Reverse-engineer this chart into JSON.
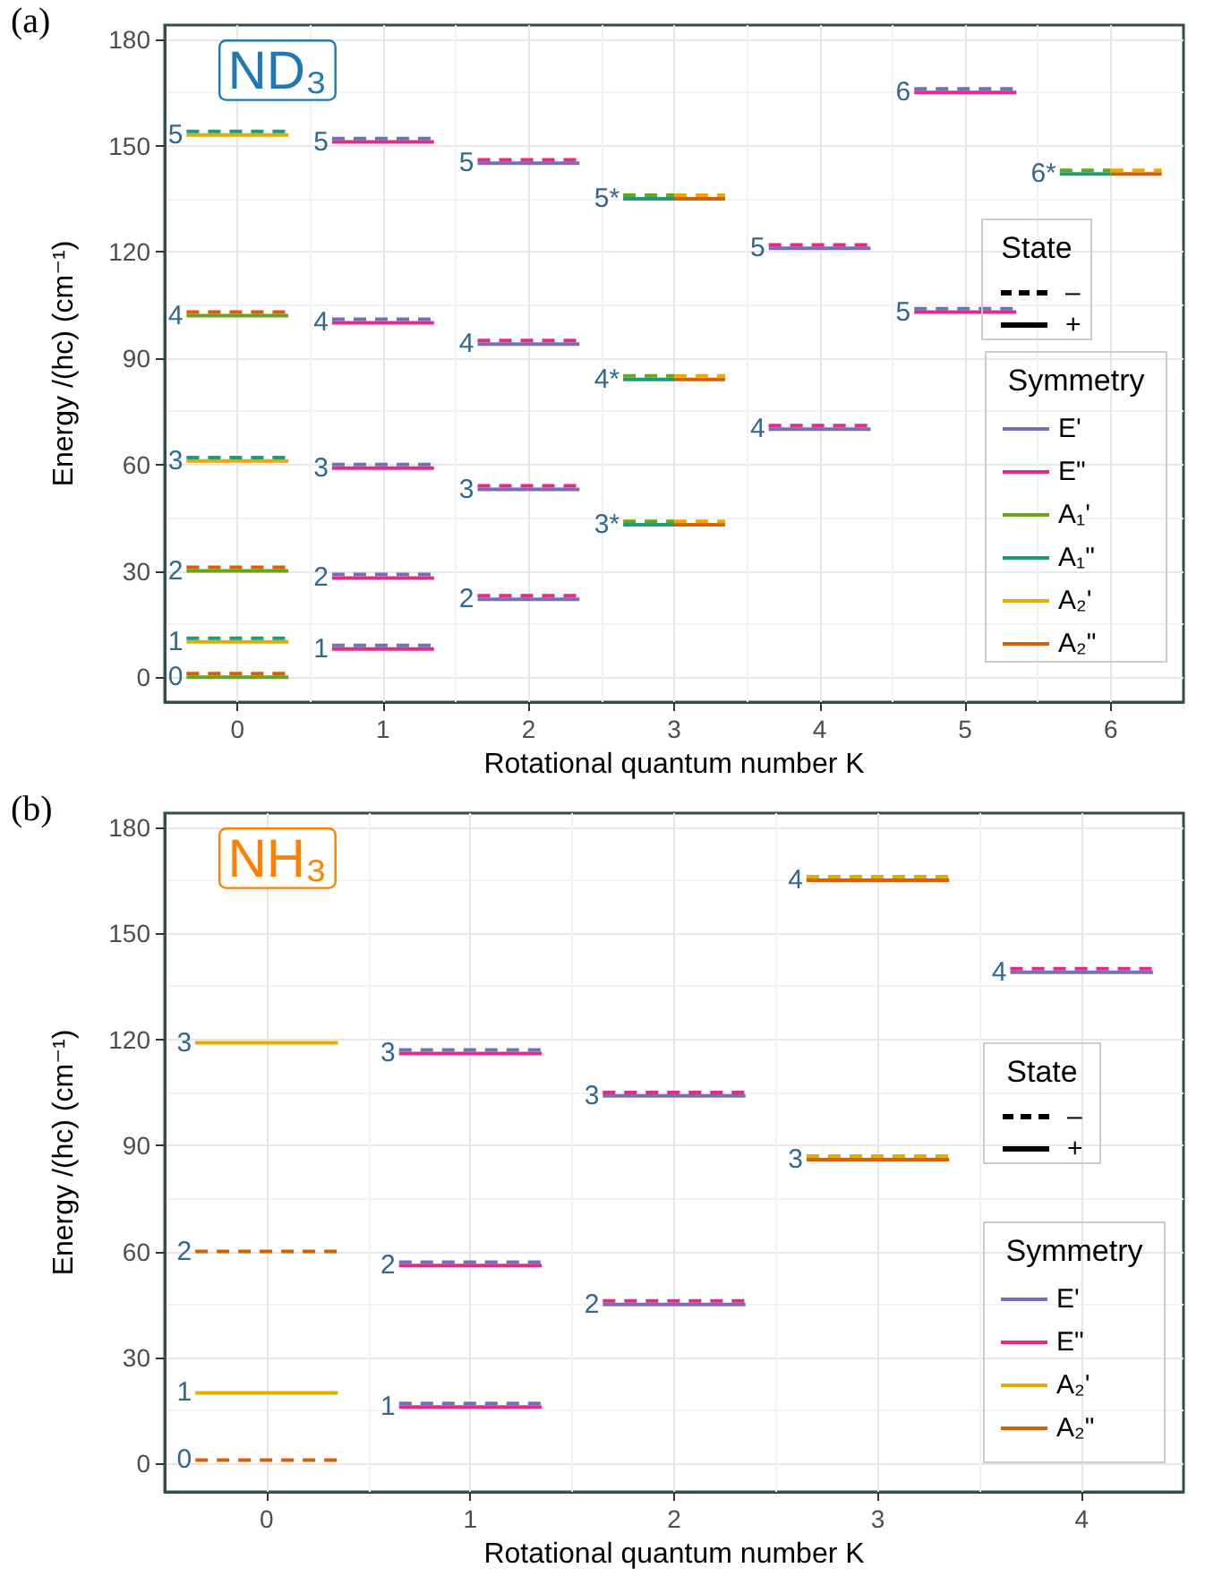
{
  "chart_data": [
    {
      "type": "line",
      "title": "ND₃",
      "xlabel": "Rotational quantum number K",
      "ylabel": "Energy /(hc) (cm⁻¹)",
      "legend_title": "Symmetry",
      "legend": "right",
      "grid": true,
      "xlim": [
        -0.5,
        6.5
      ],
      "xticks": [
        0,
        1,
        2,
        3,
        4,
        5,
        6
      ],
      "ylim": [
        -7,
        184
      ],
      "yticks": [
        0,
        30,
        60,
        90,
        120,
        150,
        180
      ],
      "series": [
        {
          "name": "E'",
          "color": "#7570b3",
          "line_style": "dashed",
          "x": [
            0.65,
            1.35
          ],
          "values": [
            9,
            9
          ]
        },
        {
          "color": "#7570b3",
          "line_style": "dashed",
          "x": [
            0.65,
            1.35
          ],
          "values": [
            29,
            29
          ]
        },
        {
          "color": "#7570b3",
          "line_style": "dashed",
          "x": [
            0.65,
            1.35
          ],
          "values": [
            60,
            60
          ]
        },
        {
          "color": "#7570b3",
          "line_style": "dashed",
          "x": [
            0.65,
            1.35
          ],
          "values": [
            101,
            101
          ]
        },
        {
          "color": "#7570b3",
          "line_style": "dashed",
          "x": [
            0.65,
            1.35
          ],
          "values": [
            152,
            152
          ]
        },
        {
          "color": "#7570b3",
          "line_style": "dashed",
          "x": [
            4.65,
            5.35
          ],
          "values": [
            166,
            166
          ]
        },
        {
          "color": "#7570b3",
          "line_style": "dashed",
          "x": [
            4.65,
            5.35
          ],
          "values": [
            104,
            104
          ]
        },
        {
          "color": "#7570b3",
          "line_style": "solid",
          "x": [
            1.65,
            2.35
          ],
          "values": [
            22,
            22
          ]
        },
        {
          "color": "#7570b3",
          "line_style": "solid",
          "x": [
            1.65,
            2.35
          ],
          "values": [
            53,
            53
          ]
        },
        {
          "color": "#7570b3",
          "line_style": "solid",
          "x": [
            1.65,
            2.35
          ],
          "values": [
            94,
            94
          ]
        },
        {
          "color": "#7570b3",
          "line_style": "solid",
          "x": [
            1.65,
            2.35
          ],
          "values": [
            145,
            145
          ]
        },
        {
          "color": "#7570b3",
          "line_style": "solid",
          "x": [
            3.65,
            4.35
          ],
          "values": [
            121,
            121
          ]
        },
        {
          "color": "#7570b3",
          "line_style": "solid",
          "x": [
            3.65,
            4.35
          ],
          "values": [
            70,
            70
          ]
        },
        {
          "name": "E\"",
          "color": "#e7298a",
          "line_style": "solid",
          "x": [
            0.65,
            1.35
          ],
          "values": [
            8,
            8
          ]
        },
        {
          "color": "#e7298a",
          "line_style": "solid",
          "x": [
            0.65,
            1.35
          ],
          "values": [
            28,
            28
          ]
        },
        {
          "color": "#e7298a",
          "line_style": "solid",
          "x": [
            0.65,
            1.35
          ],
          "values": [
            59,
            59
          ]
        },
        {
          "color": "#e7298a",
          "line_style": "solid",
          "x": [
            0.65,
            1.35
          ],
          "values": [
            100,
            100
          ]
        },
        {
          "color": "#e7298a",
          "line_style": "solid",
          "x": [
            0.65,
            1.35
          ],
          "values": [
            151,
            151
          ]
        },
        {
          "color": "#e7298a",
          "line_style": "solid",
          "x": [
            4.65,
            5.35
          ],
          "values": [
            165,
            165
          ]
        },
        {
          "color": "#e7298a",
          "line_style": "solid",
          "x": [
            4.65,
            5.35
          ],
          "values": [
            103,
            103
          ]
        },
        {
          "color": "#e7298a",
          "line_style": "dashed",
          "x": [
            1.65,
            2.35
          ],
          "values": [
            23,
            23
          ]
        },
        {
          "color": "#e7298a",
          "line_style": "dashed",
          "x": [
            1.65,
            2.35
          ],
          "values": [
            54,
            54
          ]
        },
        {
          "color": "#e7298a",
          "line_style": "dashed",
          "x": [
            1.65,
            2.35
          ],
          "values": [
            95,
            95
          ]
        },
        {
          "color": "#e7298a",
          "line_style": "dashed",
          "x": [
            1.65,
            2.35
          ],
          "values": [
            146,
            146
          ]
        },
        {
          "color": "#e7298a",
          "line_style": "dashed",
          "x": [
            3.65,
            4.35
          ],
          "values": [
            122,
            122
          ]
        },
        {
          "color": "#e7298a",
          "line_style": "dashed",
          "x": [
            3.65,
            4.35
          ],
          "values": [
            71,
            71
          ]
        },
        {
          "name": "A₁'",
          "color": "#66a61e",
          "line_style": "solid",
          "x": [
            -0.35,
            0.35
          ],
          "values": [
            0,
            0
          ]
        },
        {
          "color": "#66a61e",
          "line_style": "solid",
          "x": [
            -0.35,
            0.35
          ],
          "values": [
            30,
            30
          ]
        },
        {
          "color": "#66a61e",
          "line_style": "solid",
          "x": [
            -0.35,
            0.35
          ],
          "values": [
            102,
            102
          ]
        },
        {
          "color": "#66a61e",
          "line_style": "dashed",
          "x": [
            2.65,
            3
          ],
          "values": [
            136,
            136
          ]
        },
        {
          "color": "#66a61e",
          "line_style": "dashed",
          "x": [
            2.65,
            3
          ],
          "values": [
            85,
            85
          ]
        },
        {
          "color": "#66a61e",
          "line_style": "dashed",
          "x": [
            2.65,
            3
          ],
          "values": [
            44,
            44
          ]
        },
        {
          "color": "#66a61e",
          "line_style": "dashed",
          "x": [
            5.65,
            6
          ],
          "values": [
            143,
            143
          ]
        },
        {
          "name": "A₁\"",
          "color": "#1b9e77",
          "line_style": "dashed",
          "x": [
            -0.35,
            0.35
          ],
          "values": [
            11,
            11
          ]
        },
        {
          "color": "#1b9e77",
          "line_style": "dashed",
          "x": [
            -0.35,
            0.35
          ],
          "values": [
            62,
            62
          ]
        },
        {
          "color": "#1b9e77",
          "line_style": "dashed",
          "x": [
            -0.35,
            0.35
          ],
          "values": [
            154,
            154
          ]
        },
        {
          "color": "#1b9e77",
          "line_style": "solid",
          "x": [
            2.65,
            3
          ],
          "values": [
            135,
            135
          ]
        },
        {
          "color": "#1b9e77",
          "line_style": "solid",
          "x": [
            2.65,
            3
          ],
          "values": [
            84,
            84
          ]
        },
        {
          "color": "#1b9e77",
          "line_style": "solid",
          "x": [
            2.65,
            3
          ],
          "values": [
            43,
            43
          ]
        },
        {
          "color": "#1b9e77",
          "line_style": "solid",
          "x": [
            5.65,
            6
          ],
          "values": [
            142,
            142
          ]
        },
        {
          "name": "A₂'",
          "color": "#e6ab02",
          "line_style": "solid",
          "x": [
            -0.35,
            0.35
          ],
          "values": [
            10,
            10
          ]
        },
        {
          "color": "#e6ab02",
          "line_style": "solid",
          "x": [
            -0.35,
            0.35
          ],
          "values": [
            61,
            61
          ]
        },
        {
          "color": "#e6ab02",
          "line_style": "solid",
          "x": [
            -0.35,
            0.35
          ],
          "values": [
            153,
            153
          ]
        },
        {
          "color": "#e6ab02",
          "line_style": "dashed",
          "x": [
            3,
            3.35
          ],
          "values": [
            136,
            136
          ]
        },
        {
          "color": "#e6ab02",
          "line_style": "dashed",
          "x": [
            3,
            3.35
          ],
          "values": [
            85,
            85
          ]
        },
        {
          "color": "#e6ab02",
          "line_style": "dashed",
          "x": [
            3,
            3.35
          ],
          "values": [
            44,
            44
          ]
        },
        {
          "color": "#e6ab02",
          "line_style": "dashed",
          "x": [
            6,
            6.35
          ],
          "values": [
            143,
            143
          ]
        },
        {
          "name": "A₂\"",
          "color": "#d95f02",
          "line_style": "dashed",
          "x": [
            -0.35,
            0.35
          ],
          "values": [
            1,
            1
          ]
        },
        {
          "color": "#d95f02",
          "line_style": "dashed",
          "x": [
            -0.35,
            0.35
          ],
          "values": [
            31,
            31
          ]
        },
        {
          "color": "#d95f02",
          "line_style": "dashed",
          "x": [
            -0.35,
            0.35
          ],
          "values": [
            103,
            103
          ]
        },
        {
          "color": "#d95f02",
          "line_style": "solid",
          "x": [
            3,
            3.35
          ],
          "values": [
            135,
            135
          ]
        },
        {
          "color": "#d95f02",
          "line_style": "solid",
          "x": [
            3,
            3.35
          ],
          "values": [
            84,
            84
          ]
        },
        {
          "color": "#d95f02",
          "line_style": "solid",
          "x": [
            3,
            3.35
          ],
          "values": [
            43,
            43
          ]
        },
        {
          "color": "#d95f02",
          "line_style": "solid",
          "x": [
            6,
            6.35
          ],
          "values": [
            142,
            142
          ]
        }
      ],
      "annotations": [
        "(a)",
        "State",
        "–",
        "+",
        {
          "text": "0",
          "x": -0.35,
          "y": 0
        },
        {
          "text": "1",
          "x": -0.35,
          "y": 10
        },
        {
          "text": "2",
          "x": -0.35,
          "y": 30
        },
        {
          "text": "3",
          "x": -0.35,
          "y": 61
        },
        {
          "text": "4",
          "x": -0.35,
          "y": 102
        },
        {
          "text": "5",
          "x": -0.35,
          "y": 153
        },
        {
          "text": "1",
          "x": 0.65,
          "y": 8
        },
        {
          "text": "2",
          "x": 0.65,
          "y": 28
        },
        {
          "text": "3",
          "x": 0.65,
          "y": 59
        },
        {
          "text": "4",
          "x": 0.65,
          "y": 100
        },
        {
          "text": "5",
          "x": 0.65,
          "y": 151
        },
        {
          "text": "2",
          "x": 1.65,
          "y": 22
        },
        {
          "text": "3",
          "x": 1.65,
          "y": 53
        },
        {
          "text": "4",
          "x": 1.65,
          "y": 94
        },
        {
          "text": "5",
          "x": 1.65,
          "y": 145
        },
        {
          "text": "3*",
          "x": 2.65,
          "y": 43
        },
        {
          "text": "4*",
          "x": 2.65,
          "y": 84
        },
        {
          "text": "5*",
          "x": 2.65,
          "y": 135
        },
        {
          "text": "4",
          "x": 3.65,
          "y": 70
        },
        {
          "text": "5",
          "x": 3.65,
          "y": 121
        },
        {
          "text": "5",
          "x": 4.65,
          "y": 103
        },
        {
          "text": "6",
          "x": 4.65,
          "y": 165
        },
        {
          "text": "6*",
          "x": 5.65,
          "y": 142
        }
      ]
    },
    {
      "type": "line",
      "title": "NH₃",
      "xlabel": "Rotational quantum number K",
      "ylabel": "Energy /(hc) (cm⁻¹)",
      "legend_title": "Symmetry",
      "legend": "right",
      "grid": true,
      "xlim": [
        -0.5,
        4.5
      ],
      "xticks": [
        0,
        1,
        2,
        3,
        4
      ],
      "ylim": [
        -8,
        184
      ],
      "yticks": [
        0,
        30,
        60,
        90,
        120,
        150,
        180
      ],
      "series": [
        {
          "name": "E'",
          "color": "#7570b3",
          "line_style": "dashed",
          "x": [
            0.65,
            1.35
          ],
          "values": [
            17,
            17
          ]
        },
        {
          "color": "#7570b3",
          "line_style": "dashed",
          "x": [
            0.65,
            1.35
          ],
          "values": [
            57,
            57
          ]
        },
        {
          "color": "#7570b3",
          "line_style": "dashed",
          "x": [
            0.65,
            1.35
          ],
          "values": [
            117,
            117
          ]
        },
        {
          "color": "#7570b3",
          "line_style": "solid",
          "x": [
            1.65,
            2.35
          ],
          "values": [
            45,
            45
          ]
        },
        {
          "color": "#7570b3",
          "line_style": "solid",
          "x": [
            1.65,
            2.35
          ],
          "values": [
            104,
            104
          ]
        },
        {
          "color": "#7570b3",
          "line_style": "solid",
          "x": [
            3.65,
            4.35
          ],
          "values": [
            139,
            139
          ]
        },
        {
          "name": "E\"",
          "color": "#e7298a",
          "line_style": "solid",
          "x": [
            0.65,
            1.35
          ],
          "values": [
            16,
            16
          ]
        },
        {
          "color": "#e7298a",
          "line_style": "solid",
          "x": [
            0.65,
            1.35
          ],
          "values": [
            56,
            56
          ]
        },
        {
          "color": "#e7298a",
          "line_style": "solid",
          "x": [
            0.65,
            1.35
          ],
          "values": [
            116,
            116
          ]
        },
        {
          "color": "#e7298a",
          "line_style": "dashed",
          "x": [
            1.65,
            2.35
          ],
          "values": [
            46,
            46
          ]
        },
        {
          "color": "#e7298a",
          "line_style": "dashed",
          "x": [
            1.65,
            2.35
          ],
          "values": [
            105,
            105
          ]
        },
        {
          "color": "#e7298a",
          "line_style": "dashed",
          "x": [
            3.65,
            4.35
          ],
          "values": [
            140,
            140
          ]
        },
        {
          "name": "A₂'",
          "color": "#e6ab02",
          "line_style": "solid",
          "x": [
            -0.35,
            0.35
          ],
          "values": [
            20,
            20
          ]
        },
        {
          "color": "#e6ab02",
          "line_style": "solid",
          "x": [
            -0.35,
            0.35
          ],
          "values": [
            119,
            119
          ]
        },
        {
          "color": "#e6ab02",
          "line_style": "dashed",
          "x": [
            2.65,
            3.35
          ],
          "values": [
            166,
            166
          ]
        },
        {
          "color": "#e6ab02",
          "line_style": "dashed",
          "x": [
            2.65,
            3.35
          ],
          "values": [
            87,
            87
          ]
        },
        {
          "name": "A₂\"",
          "color": "#d95f02",
          "line_style": "dashed",
          "x": [
            -0.35,
            0.35
          ],
          "values": [
            1,
            1
          ]
        },
        {
          "color": "#d95f02",
          "line_style": "dashed",
          "x": [
            -0.35,
            0.35
          ],
          "values": [
            60,
            60
          ]
        },
        {
          "color": "#d95f02",
          "line_style": "solid",
          "x": [
            2.65,
            3.35
          ],
          "values": [
            165,
            165
          ]
        },
        {
          "color": "#d95f02",
          "line_style": "solid",
          "x": [
            2.65,
            3.35
          ],
          "values": [
            86,
            86
          ]
        }
      ],
      "annotations": [
        "(b)",
        "State",
        "–",
        "+",
        {
          "text": "0",
          "x": -0.35,
          "y": 1
        },
        {
          "text": "1",
          "x": -0.35,
          "y": 20
        },
        {
          "text": "2",
          "x": -0.35,
          "y": 60
        },
        {
          "text": "3",
          "x": -0.35,
          "y": 119
        },
        {
          "text": "1",
          "x": 0.65,
          "y": 16
        },
        {
          "text": "2",
          "x": 0.65,
          "y": 56
        },
        {
          "text": "3",
          "x": 0.65,
          "y": 116
        },
        {
          "text": "2",
          "x": 1.65,
          "y": 45
        },
        {
          "text": "3",
          "x": 1.65,
          "y": 104
        },
        {
          "text": "3",
          "x": 2.65,
          "y": 86
        },
        {
          "text": "4",
          "x": 2.65,
          "y": 165
        },
        {
          "text": "4",
          "x": 3.65,
          "y": 139
        }
      ]
    }
  ]
}
